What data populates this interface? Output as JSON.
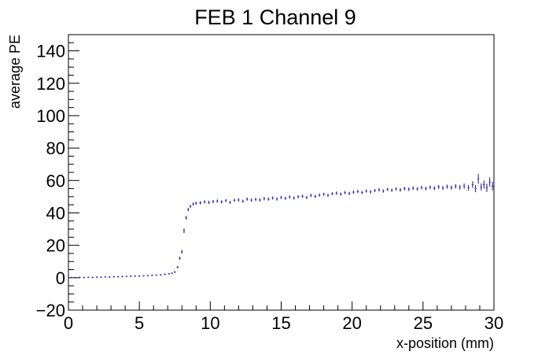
{
  "chart_data": {
    "type": "scatter",
    "title": "FEB 1 Channel 9",
    "xlabel": "x-position (mm)",
    "ylabel": "average PE",
    "xlim": [
      0,
      30
    ],
    "ylim": [
      -20,
      150
    ],
    "x_ticks": [
      "0",
      "5",
      "10",
      "15",
      "20",
      "25",
      "30"
    ],
    "y_ticks": [
      "−20",
      "0",
      "20",
      "40",
      "60",
      "80",
      "100",
      "120",
      "140"
    ],
    "grid": false,
    "legend": "none",
    "marker_color": "#3c34a8",
    "series": [
      {
        "points": [
          [
            0.2,
            0.1
          ],
          [
            0.5,
            0.0
          ],
          [
            0.8,
            0.2
          ],
          [
            1.1,
            0.1
          ],
          [
            1.4,
            0.3
          ],
          [
            1.7,
            0.2
          ],
          [
            2.0,
            0.4
          ],
          [
            2.3,
            0.3
          ],
          [
            2.6,
            0.5
          ],
          [
            2.9,
            0.4
          ],
          [
            3.2,
            0.6
          ],
          [
            3.5,
            0.6
          ],
          [
            3.8,
            0.7
          ],
          [
            4.1,
            0.8
          ],
          [
            4.4,
            0.9
          ],
          [
            4.7,
            1.0
          ],
          [
            5.0,
            1.0
          ],
          [
            5.3,
            1.1
          ],
          [
            5.6,
            1.3
          ],
          [
            5.9,
            1.5
          ],
          [
            6.2,
            1.6
          ],
          [
            6.5,
            1.8
          ],
          [
            6.8,
            2.1
          ],
          [
            7.1,
            2.4
          ],
          [
            7.3,
            2.8
          ],
          [
            7.5,
            3.5
          ],
          [
            7.7,
            6.5
          ],
          [
            7.85,
            12.0
          ],
          [
            8.0,
            16.0
          ],
          [
            8.15,
            29.0
          ],
          [
            8.3,
            37.0
          ],
          [
            8.45,
            42.0
          ],
          [
            8.6,
            44.0
          ],
          [
            8.8,
            45.5
          ],
          [
            9.0,
            46.0
          ],
          [
            9.3,
            46.2
          ],
          [
            9.6,
            46.8
          ],
          [
            9.9,
            46.5
          ],
          [
            10.2,
            47.0
          ],
          [
            10.5,
            47.3
          ],
          [
            10.8,
            46.8
          ],
          [
            11.1,
            47.6
          ],
          [
            11.4,
            46.5
          ],
          [
            11.7,
            47.8
          ],
          [
            12.0,
            48.0
          ],
          [
            12.3,
            47.2
          ],
          [
            12.6,
            48.5
          ],
          [
            12.9,
            47.9
          ],
          [
            13.2,
            48.3
          ],
          [
            13.5,
            48.0
          ],
          [
            13.8,
            48.8
          ],
          [
            14.1,
            48.5
          ],
          [
            14.4,
            49.2
          ],
          [
            14.7,
            48.6
          ],
          [
            15.0,
            49.5
          ],
          [
            15.3,
            49.0
          ],
          [
            15.6,
            49.8
          ],
          [
            15.9,
            49.2
          ],
          [
            16.2,
            50.0
          ],
          [
            16.5,
            50.3
          ],
          [
            16.8,
            49.5
          ],
          [
            17.1,
            50.8
          ],
          [
            17.4,
            50.2
          ],
          [
            17.7,
            51.0
          ],
          [
            18.0,
            51.5
          ],
          [
            18.3,
            50.8
          ],
          [
            18.6,
            51.8
          ],
          [
            18.9,
            52.2
          ],
          [
            19.2,
            51.6
          ],
          [
            19.5,
            52.5
          ],
          [
            19.8,
            52.0
          ],
          [
            20.1,
            52.8
          ],
          [
            20.4,
            53.2
          ],
          [
            20.7,
            52.6
          ],
          [
            21.0,
            53.5
          ],
          [
            21.3,
            53.0
          ],
          [
            21.6,
            53.8
          ],
          [
            21.9,
            54.2
          ],
          [
            22.2,
            53.5
          ],
          [
            22.5,
            54.5
          ],
          [
            22.8,
            54.0
          ],
          [
            23.1,
            54.8
          ],
          [
            23.4,
            54.2
          ],
          [
            23.7,
            55.0
          ],
          [
            24.0,
            54.6
          ],
          [
            24.3,
            55.3
          ],
          [
            24.6,
            54.8
          ],
          [
            24.9,
            55.6
          ],
          [
            25.2,
            55.0
          ],
          [
            25.5,
            55.8
          ],
          [
            25.8,
            55.2
          ],
          [
            26.1,
            56.0
          ],
          [
            26.4,
            55.4
          ],
          [
            26.7,
            56.2
          ],
          [
            27.0,
            55.6
          ],
          [
            27.3,
            56.4
          ],
          [
            27.6,
            55.8
          ],
          [
            27.9,
            56.5
          ],
          [
            28.2,
            55.5
          ],
          [
            28.5,
            57.5
          ],
          [
            28.7,
            55.0
          ],
          [
            28.9,
            61.0
          ],
          [
            29.1,
            56.0
          ],
          [
            29.3,
            57.5
          ],
          [
            29.5,
            55.5
          ],
          [
            29.7,
            59.0
          ],
          [
            29.9,
            56.5
          ]
        ],
        "error": [
          0.3,
          0.3,
          0.3,
          0.3,
          0.3,
          0.3,
          0.3,
          0.3,
          0.3,
          0.3,
          0.3,
          0.3,
          0.3,
          0.3,
          0.3,
          0.3,
          0.3,
          0.3,
          0.3,
          0.3,
          0.3,
          0.4,
          0.4,
          0.4,
          0.5,
          0.6,
          0.8,
          1.0,
          1.2,
          1.4,
          1.2,
          1.0,
          1.0,
          1.0,
          1.0,
          1.0,
          1.0,
          1.0,
          1.0,
          1.0,
          1.0,
          1.0,
          1.0,
          1.0,
          1.0,
          1.0,
          1.0,
          1.0,
          1.0,
          1.0,
          1.0,
          1.0,
          1.0,
          1.0,
          1.0,
          1.0,
          1.0,
          1.0,
          1.0,
          1.0,
          1.0,
          1.0,
          1.0,
          1.0,
          1.0,
          1.0,
          1.0,
          1.0,
          1.0,
          1.0,
          1.0,
          1.0,
          1.0,
          1.0,
          1.0,
          1.0,
          1.0,
          1.0,
          1.0,
          1.0,
          1.0,
          1.0,
          1.1,
          1.1,
          1.1,
          1.1,
          1.1,
          1.1,
          1.1,
          1.1,
          1.2,
          1.2,
          1.2,
          1.3,
          1.3,
          1.4,
          1.5,
          1.6,
          1.8,
          2.0,
          2.2,
          3.0,
          2.2,
          2.5,
          2.5,
          2.8,
          2.6
        ]
      }
    ]
  }
}
